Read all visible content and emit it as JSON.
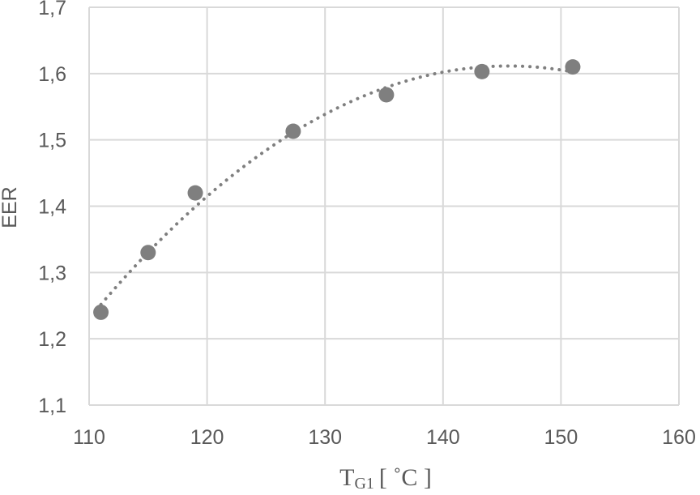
{
  "chart_data": {
    "type": "scatter",
    "title": "",
    "xlabel": "",
    "xlabel_main": "T",
    "xlabel_sub": "G1",
    "xlabel_unit": "[ ˚C ]",
    "ylabel": "EER",
    "xlim": [
      110,
      160
    ],
    "ylim": [
      1.1,
      1.7
    ],
    "x_ticks": [
      110,
      120,
      130,
      140,
      150,
      160
    ],
    "y_ticks": [
      1.1,
      1.2,
      1.3,
      1.4,
      1.5,
      1.6,
      1.7
    ],
    "x_tick_labels": [
      "110",
      "120",
      "130",
      "140",
      "150",
      "160"
    ],
    "y_tick_labels": [
      "1,1",
      "1,2",
      "1,3",
      "1,4",
      "1,5",
      "1,6",
      "1,7"
    ],
    "grid": true,
    "series": [
      {
        "name": "EER",
        "x": [
          111,
          115,
          119,
          127.3,
          135.2,
          143.3,
          151
        ],
        "y": [
          1.24,
          1.33,
          1.42,
          1.513,
          1.568,
          1.603,
          1.61
        ]
      }
    ],
    "trendline": {
      "type": "polynomial",
      "style": "dotted",
      "x_from": 111,
      "x_to": 151
    },
    "colors": {
      "marker": "#7f7f7f",
      "trendline": "#7f7f7f",
      "grid": "#d9d9d9",
      "tick_label": "#595959",
      "axis_label": "#595959"
    }
  }
}
